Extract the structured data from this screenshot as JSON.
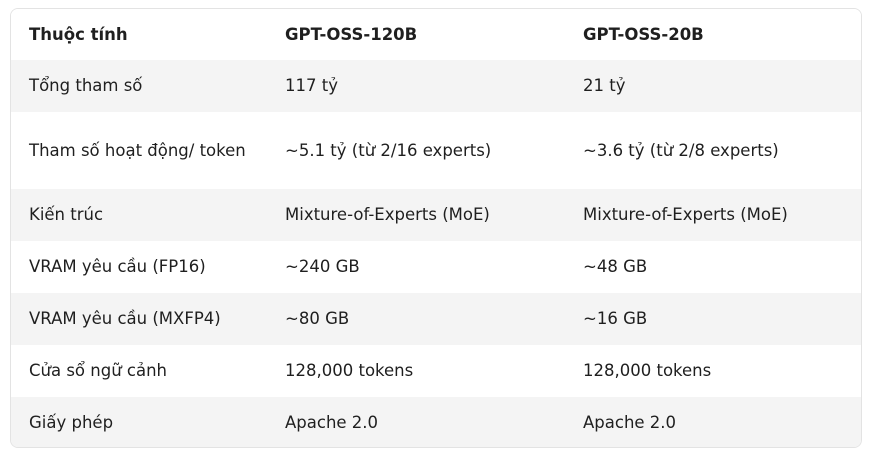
{
  "table": {
    "headers": [
      "Thuộc tính",
      "GPT-OSS-120B",
      "GPT-OSS-20B"
    ],
    "rows": [
      [
        "Tổng tham số",
        "117 tỷ",
        "21 tỷ"
      ],
      [
        "Tham số hoạt động/ token",
        "~5.1 tỷ (từ 2/16 experts)",
        "~3.6 tỷ (từ 2/8 experts)"
      ],
      [
        "Kiến trúc",
        "Mixture-of-Experts (MoE)",
        "Mixture-of-Experts (MoE)"
      ],
      [
        "VRAM yêu cầu (FP16)",
        "~240 GB",
        "~48 GB"
      ],
      [
        "VRAM yêu cầu (MXFP4)",
        "~80 GB",
        "~16 GB"
      ],
      [
        "Cửa sổ ngữ cảnh",
        "128,000 tokens",
        "128,000 tokens"
      ],
      [
        "Giấy phép",
        "Apache 2.0",
        "Apache 2.0"
      ]
    ]
  },
  "colors": {
    "striped_row": "#f4f4f4",
    "border": "#e3e3e3",
    "text": "#1f1f1f"
  }
}
